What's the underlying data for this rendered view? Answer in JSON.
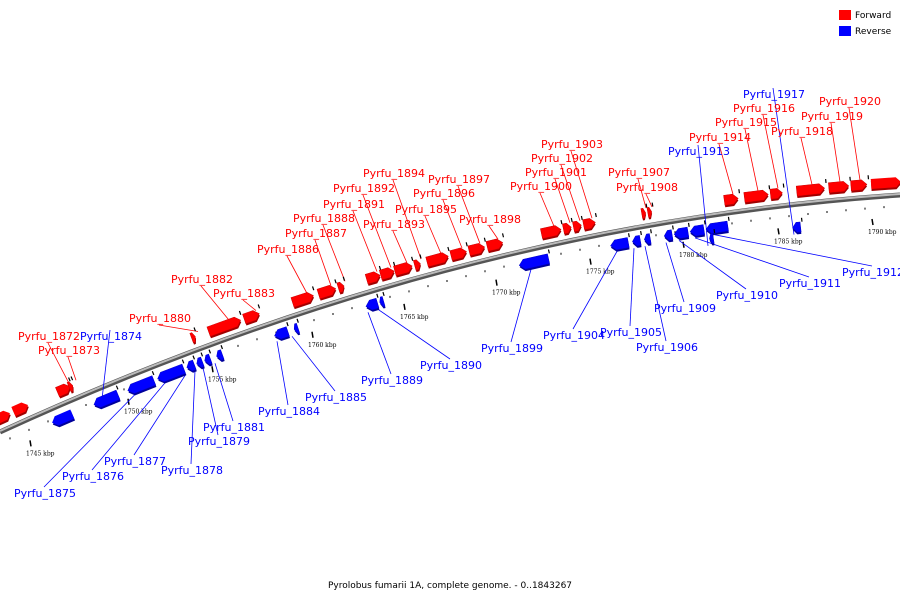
{
  "caption": "Pyrolobus fumarii 1A, complete genome. - 0..1843267",
  "legend": [
    {
      "label": "Forward",
      "color": "#ff0000"
    },
    {
      "label": "Reverse",
      "color": "#0000ff"
    }
  ],
  "colors": {
    "forward": "#ff0000",
    "reverse": "#0000ff",
    "backbone": "#777777"
  },
  "scale_ticks": [
    {
      "label": "1745 kbp"
    },
    {
      "label": "1750 kbp"
    },
    {
      "label": "1755 kbp"
    },
    {
      "label": "1760 kbp"
    },
    {
      "label": "1765 kbp"
    },
    {
      "label": "1770 kbp"
    },
    {
      "label": "1775 kbp"
    },
    {
      "label": "1780 kbp"
    },
    {
      "label": "1785 kbp"
    },
    {
      "label": "1790 kbp"
    }
  ],
  "genes": [
    {
      "name": "Pyrfu_1872",
      "strand": "forward"
    },
    {
      "name": "Pyrfu_1873",
      "strand": "forward"
    },
    {
      "name": "Pyrfu_1874",
      "strand": "reverse"
    },
    {
      "name": "Pyrfu_1875",
      "strand": "reverse"
    },
    {
      "name": "Pyrfu_1876",
      "strand": "reverse"
    },
    {
      "name": "Pyrfu_1877",
      "strand": "reverse"
    },
    {
      "name": "Pyrfu_1878",
      "strand": "reverse"
    },
    {
      "name": "Pyrfu_1879",
      "strand": "reverse"
    },
    {
      "name": "Pyrfu_1880",
      "strand": "forward"
    },
    {
      "name": "Pyrfu_1881",
      "strand": "reverse"
    },
    {
      "name": "Pyrfu_1882",
      "strand": "forward"
    },
    {
      "name": "Pyrfu_1883",
      "strand": "forward"
    },
    {
      "name": "Pyrfu_1884",
      "strand": "reverse"
    },
    {
      "name": "Pyrfu_1885",
      "strand": "reverse"
    },
    {
      "name": "Pyrfu_1886",
      "strand": "forward"
    },
    {
      "name": "Pyrfu_1887",
      "strand": "forward"
    },
    {
      "name": "Pyrfu_1888",
      "strand": "forward"
    },
    {
      "name": "Pyrfu_1889",
      "strand": "reverse"
    },
    {
      "name": "Pyrfu_1890",
      "strand": "reverse"
    },
    {
      "name": "Pyrfu_1891",
      "strand": "forward"
    },
    {
      "name": "Pyrfu_1892",
      "strand": "forward"
    },
    {
      "name": "Pyrfu_1893",
      "strand": "forward"
    },
    {
      "name": "Pyrfu_1894",
      "strand": "forward"
    },
    {
      "name": "Pyrfu_1895",
      "strand": "forward"
    },
    {
      "name": "Pyrfu_1896",
      "strand": "forward"
    },
    {
      "name": "Pyrfu_1897",
      "strand": "forward"
    },
    {
      "name": "Pyrfu_1898",
      "strand": "forward"
    },
    {
      "name": "Pyrfu_1899",
      "strand": "reverse"
    },
    {
      "name": "Pyrfu_1900",
      "strand": "forward"
    },
    {
      "name": "Pyrfu_1901",
      "strand": "forward"
    },
    {
      "name": "Pyrfu_1902",
      "strand": "forward"
    },
    {
      "name": "Pyrfu_1903",
      "strand": "forward"
    },
    {
      "name": "Pyrfu_1904",
      "strand": "reverse"
    },
    {
      "name": "Pyrfu_1905",
      "strand": "reverse"
    },
    {
      "name": "Pyrfu_1906",
      "strand": "reverse"
    },
    {
      "name": "Pyrfu_1907",
      "strand": "forward"
    },
    {
      "name": "Pyrfu_1908",
      "strand": "forward"
    },
    {
      "name": "Pyrfu_1909",
      "strand": "reverse"
    },
    {
      "name": "Pyrfu_1910",
      "strand": "reverse"
    },
    {
      "name": "Pyrfu_1911",
      "strand": "reverse"
    },
    {
      "name": "Pyrfu_1912",
      "strand": "reverse"
    },
    {
      "name": "Pyrfu_1913",
      "strand": "reverse"
    },
    {
      "name": "Pyrfu_1914",
      "strand": "forward"
    },
    {
      "name": "Pyrfu_1915",
      "strand": "forward"
    },
    {
      "name": "Pyrfu_1916",
      "strand": "forward"
    },
    {
      "name": "Pyrfu_1917",
      "strand": "reverse"
    },
    {
      "name": "Pyrfu_1918",
      "strand": "forward"
    },
    {
      "name": "Pyrfu_1919",
      "strand": "forward"
    },
    {
      "name": "Pyrfu_1920",
      "strand": "forward"
    }
  ]
}
